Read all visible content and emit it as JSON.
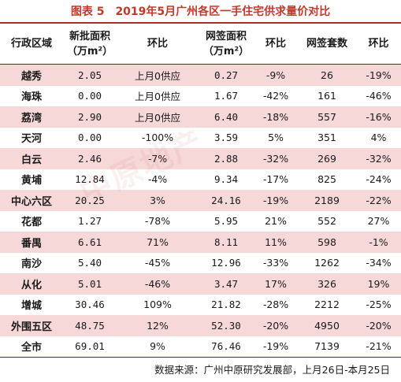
{
  "title": "图表 5　2019年5月广州各区一手住宅供求量价对比",
  "headers": {
    "region": "行政区域",
    "new_area_1": "新批面积",
    "new_area_2": "（万m²）",
    "new_mom": "环比",
    "signed_area_1": "网签面积",
    "signed_area_2": "（万m²）",
    "signed_mom": "环比",
    "units": "网签套数",
    "units_mom": "环比"
  },
  "rows": [
    {
      "region": "越秀",
      "new_area": "2.05",
      "new_mom": "上月0供应",
      "signed_area": "0.27",
      "signed_mom": "-9%",
      "units": "26",
      "units_mom": "-19%"
    },
    {
      "region": "海珠",
      "new_area": "0.00",
      "new_mom": "上月0供应",
      "signed_area": "1.67",
      "signed_mom": "-42%",
      "units": "161",
      "units_mom": "-46%"
    },
    {
      "region": "荔湾",
      "new_area": "2.90",
      "new_mom": "上月0供应",
      "signed_area": "6.40",
      "signed_mom": "-18%",
      "units": "557",
      "units_mom": "-16%"
    },
    {
      "region": "天河",
      "new_area": "0.00",
      "new_mom": "-100%",
      "signed_area": "3.59",
      "signed_mom": "5%",
      "units": "351",
      "units_mom": "4%"
    },
    {
      "region": "白云",
      "new_area": "2.46",
      "new_mom": "-7%",
      "signed_area": "2.88",
      "signed_mom": "-32%",
      "units": "269",
      "units_mom": "-32%"
    },
    {
      "region": "黄埔",
      "new_area": "12.84",
      "new_mom": "-4%",
      "signed_area": "9.34",
      "signed_mom": "-17%",
      "units": "825",
      "units_mom": "-24%"
    },
    {
      "region": "中心六区",
      "new_area": "20.25",
      "new_mom": "3%",
      "signed_area": "24.16",
      "signed_mom": "-19%",
      "units": "2189",
      "units_mom": "-22%"
    },
    {
      "region": "花都",
      "new_area": "1.27",
      "new_mom": "-78%",
      "signed_area": "5.95",
      "signed_mom": "21%",
      "units": "552",
      "units_mom": "27%"
    },
    {
      "region": "番禺",
      "new_area": "6.61",
      "new_mom": "71%",
      "signed_area": "8.11",
      "signed_mom": "11%",
      "units": "598",
      "units_mom": "-1%"
    },
    {
      "region": "南沙",
      "new_area": "5.40",
      "new_mom": "-45%",
      "signed_area": "12.96",
      "signed_mom": "-33%",
      "units": "1262",
      "units_mom": "-34%"
    },
    {
      "region": "从化",
      "new_area": "5.01",
      "new_mom": "-46%",
      "signed_area": "3.47",
      "signed_mom": "17%",
      "units": "326",
      "units_mom": "19%"
    },
    {
      "region": "增城",
      "new_area": "30.46",
      "new_mom": "109%",
      "signed_area": "21.82",
      "signed_mom": "-28%",
      "units": "2212",
      "units_mom": "-25%"
    },
    {
      "region": "外围五区",
      "new_area": "48.75",
      "new_mom": "12%",
      "signed_area": "52.30",
      "signed_mom": "-20%",
      "units": "4950",
      "units_mom": "-20%"
    },
    {
      "region": "全市",
      "new_area": "69.01",
      "new_mom": "9%",
      "signed_area": "76.46",
      "signed_mom": "-19%",
      "units": "7139",
      "units_mom": "-21%"
    }
  ],
  "source": "数据来源：广州中原研究发展部，上月26日-本月25日",
  "watermark": "中原地产",
  "colors": {
    "title": "#c0392b",
    "shade": "#f6d8d8",
    "rule": "#7a1c1c"
  }
}
